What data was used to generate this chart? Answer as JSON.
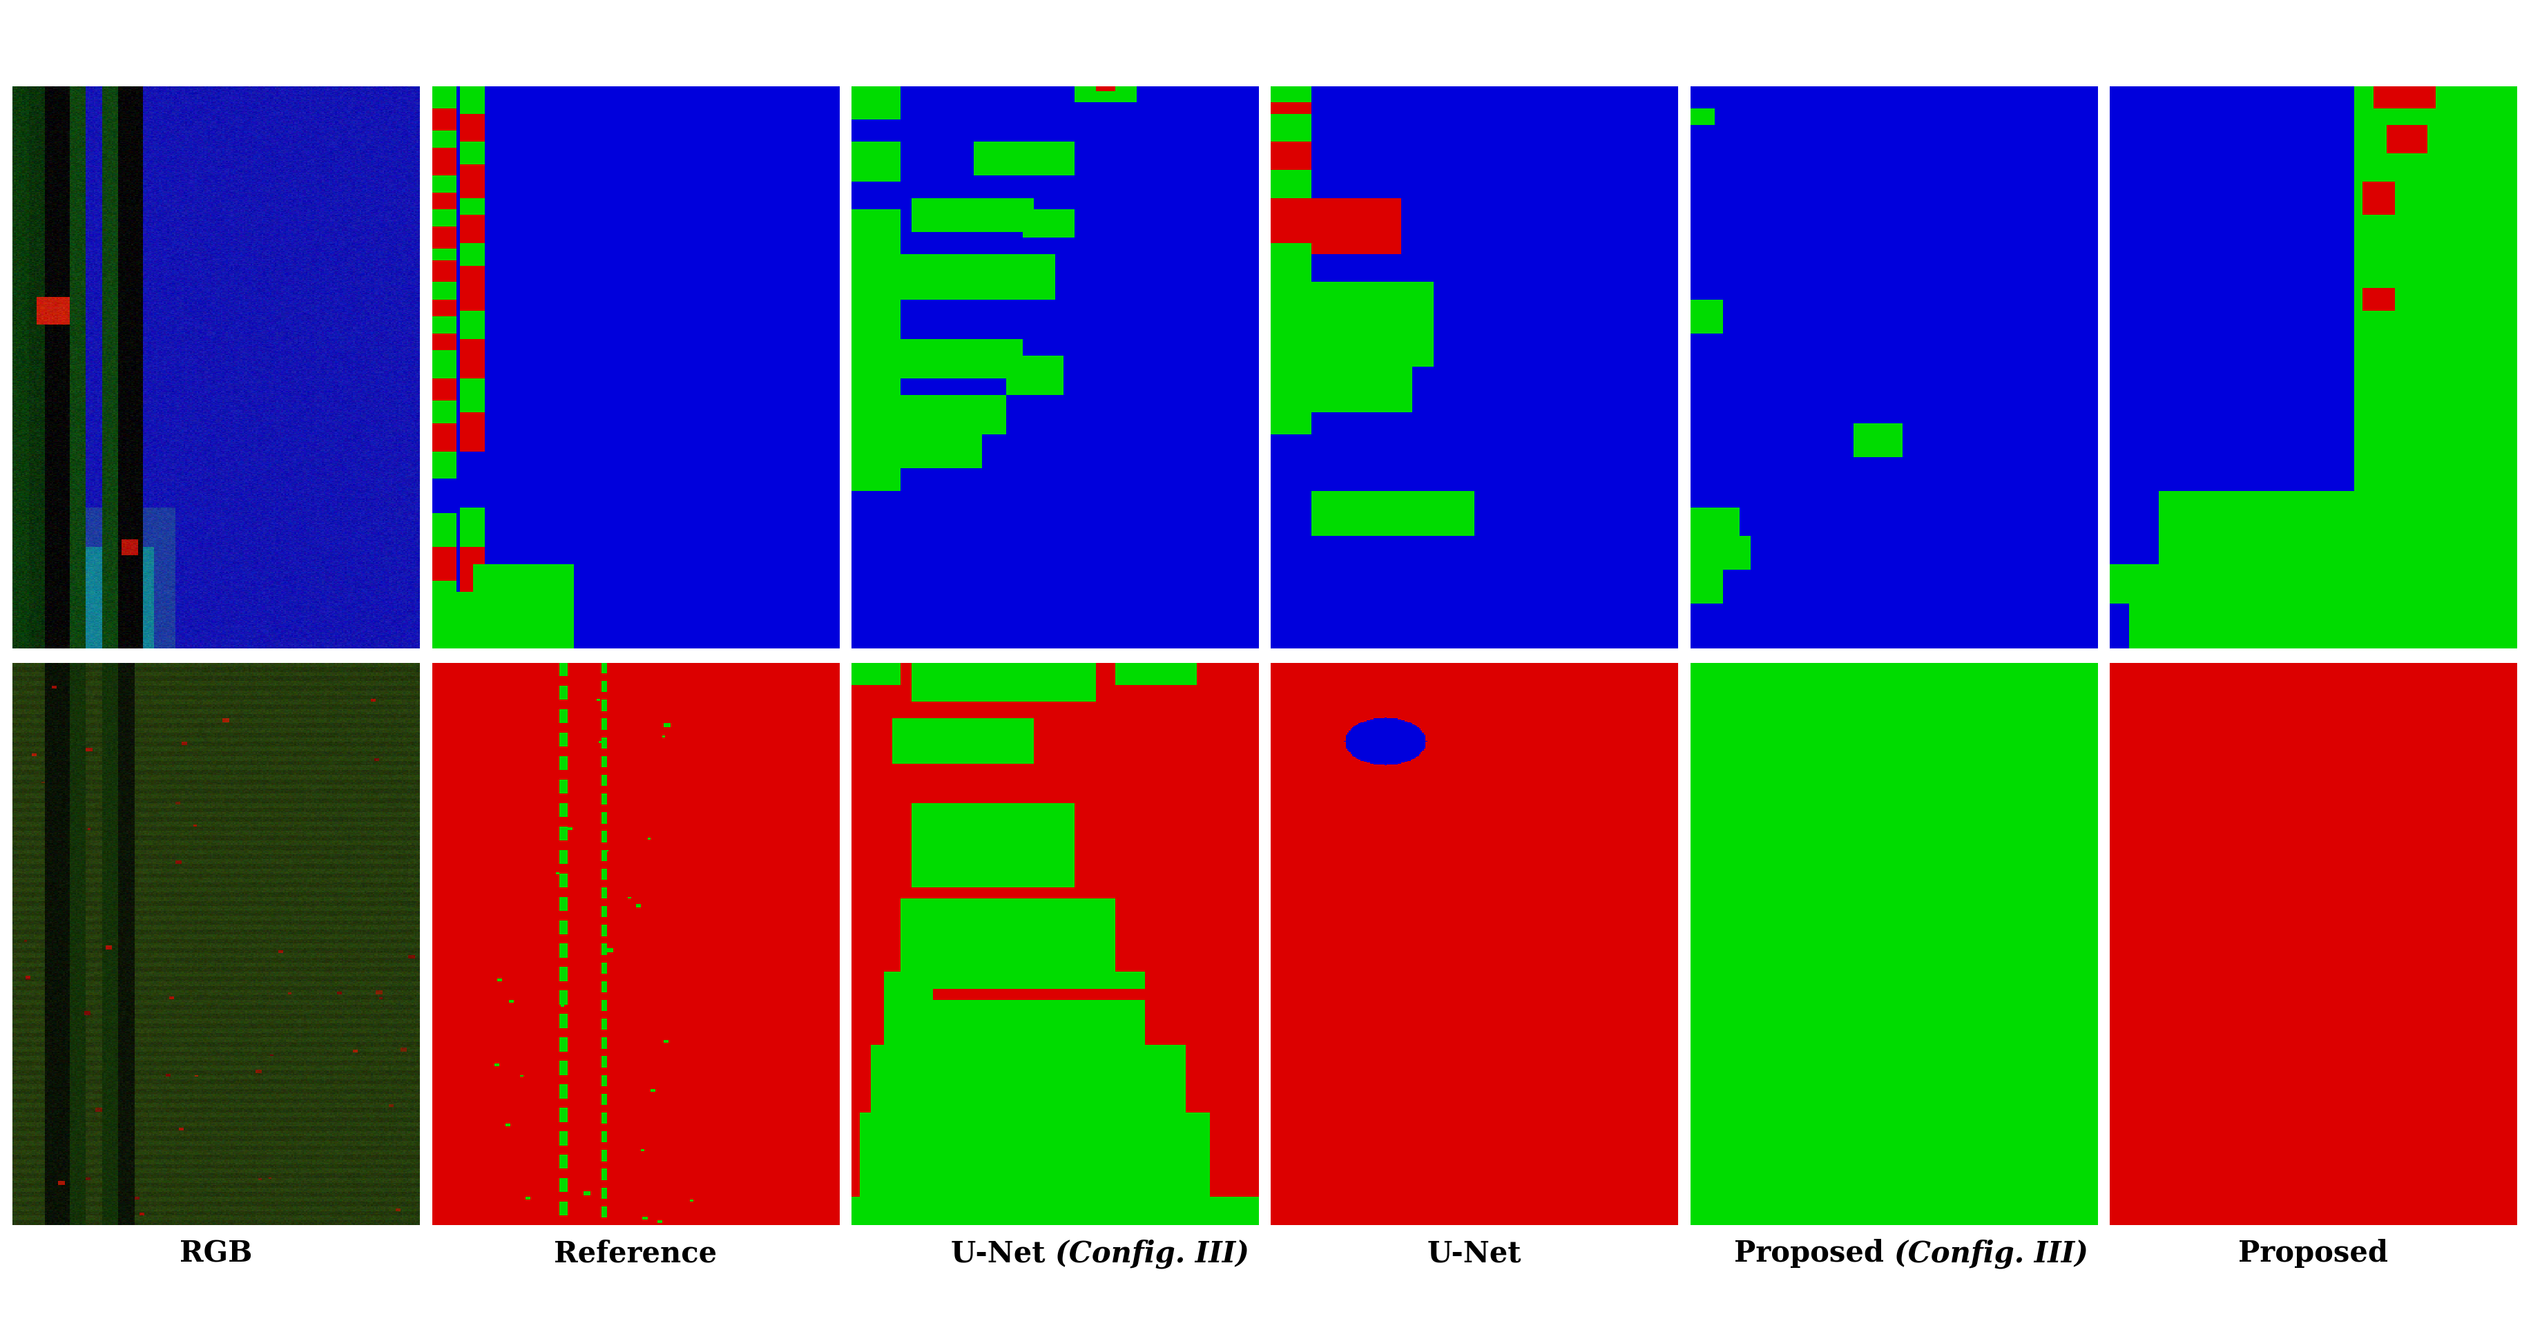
{
  "labels": [
    "RGB",
    "Reference",
    "U-Net (Config. III)",
    "U-Net",
    "Proposed (Config. III)",
    "Proposed"
  ],
  "bg_color": "#ffffff",
  "label_fontsize": 30,
  "figsize": [
    36.52,
    19.4
  ],
  "BLUE": [
    0,
    0,
    220
  ],
  "GREEN": [
    0,
    220,
    0
  ],
  "RED": [
    220,
    0,
    0
  ]
}
